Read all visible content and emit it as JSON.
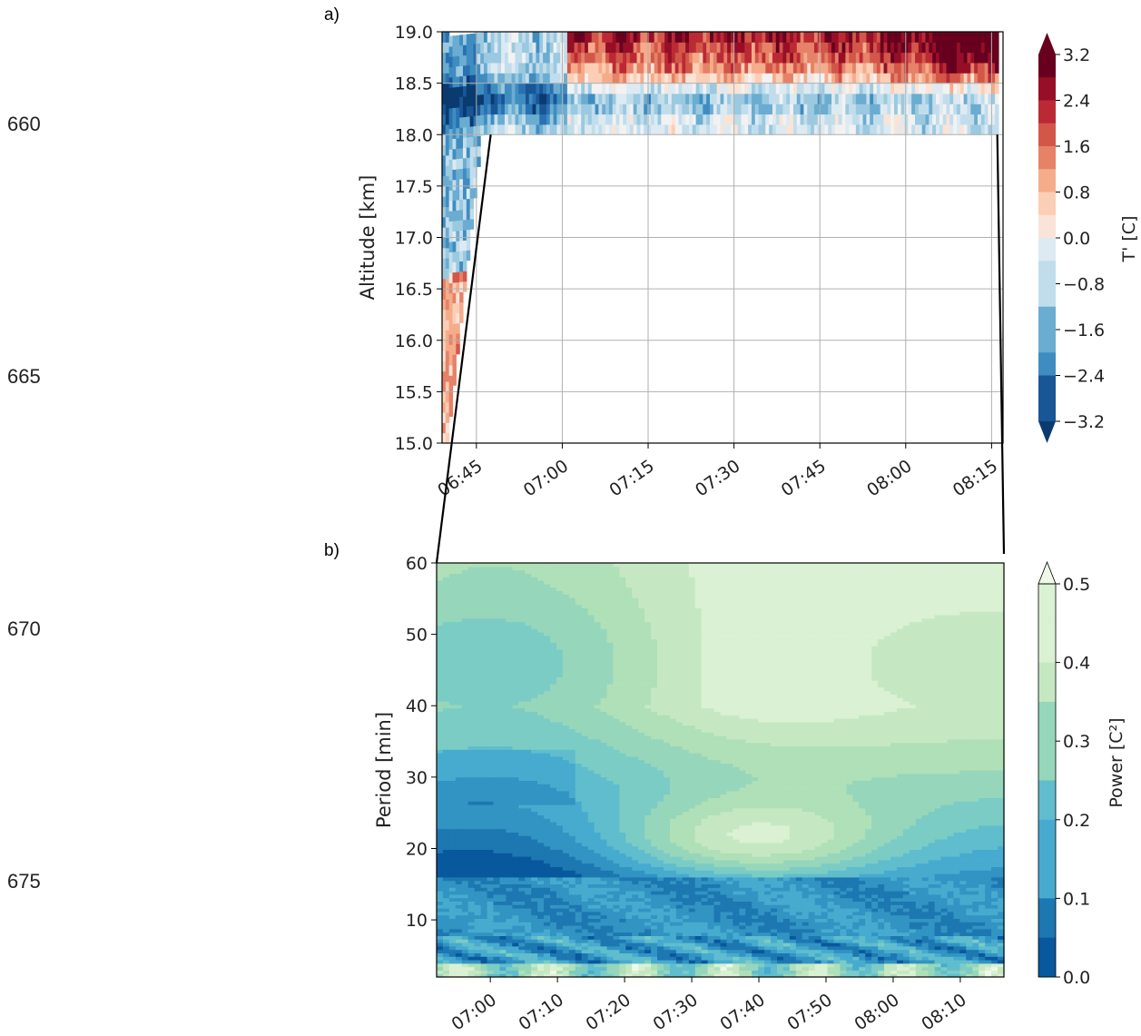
{
  "line_numbers": [
    "660",
    "665",
    "670",
    "675"
  ],
  "chart_data": [
    {
      "panel": "a)",
      "type": "heatmap",
      "ylabel": "Altitude [km]",
      "xlabel": "",
      "ylim": [
        15.0,
        19.0
      ],
      "yticks": [
        "15.0",
        "15.5",
        "16.0",
        "16.5",
        "17.0",
        "17.5",
        "18.0",
        "18.5",
        "19.0"
      ],
      "xticks": [
        "06:45",
        "07:00",
        "07:15",
        "07:30",
        "07:45",
        "08:00",
        "08:15"
      ],
      "grid": true,
      "colorbar": {
        "label": "T' [C]",
        "ticks": [
          "3.2",
          "2.4",
          "1.6",
          "0.8",
          "0.0",
          "−0.8",
          "−1.6",
          "−2.4",
          "−3.2"
        ],
        "range": [
          -3.2,
          3.2
        ],
        "colormap": "RdBu_r"
      },
      "summary_values": {
        "warm_region": {
          "time_from": "07:05",
          "time_to": "08:16",
          "alt_from": 18.3,
          "alt_to": 19.0,
          "T": 1.6
        },
        "cold_band": {
          "time_from": "06:45",
          "time_to": "08:16",
          "alt_from": 18.0,
          "alt_to": 18.5,
          "T": -1.2
        },
        "max_warm": {
          "time": "07:57",
          "alt": 18.6,
          "T": 3.2
        }
      }
    },
    {
      "panel": "b)",
      "type": "heatmap",
      "ylabel": "Period [min]",
      "xlabel": "",
      "ylim": [
        2,
        60
      ],
      "yticks": [
        "10",
        "20",
        "30",
        "40",
        "50",
        "60"
      ],
      "xticks": [
        "07:00",
        "07:10",
        "07:20",
        "07:30",
        "07:40",
        "07:50",
        "08:00",
        "08:10"
      ],
      "grid": false,
      "colorbar": {
        "label": "Power [C²]",
        "ticks": [
          "0.5",
          "0.4",
          "0.3",
          "0.2",
          "0.1",
          "0.0"
        ],
        "range": [
          0.0,
          0.5
        ],
        "colormap": "GnBu_r"
      },
      "summary_values": {
        "high_power_band": {
          "period_from": 45,
          "period_to": 56,
          "power": 0.5
        },
        "secondary_peak": {
          "time": "07:48",
          "period": 21,
          "power": 0.45
        },
        "low_power_band": {
          "period_from": 5,
          "period_to": 14,
          "power": 0.1
        }
      }
    }
  ]
}
